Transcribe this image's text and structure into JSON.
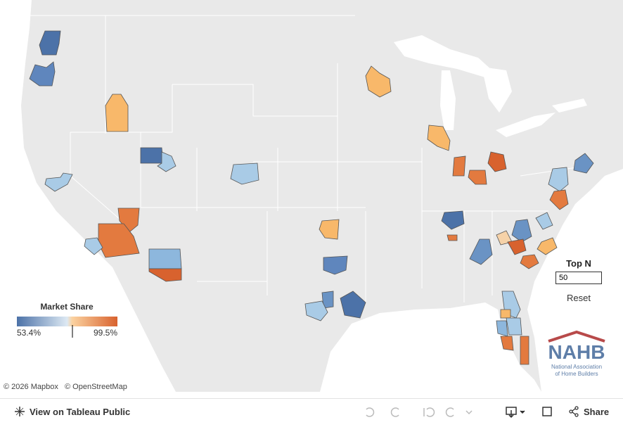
{
  "legend": {
    "title": "Market Share",
    "min_label": "53.4%",
    "max_label": "99.5%"
  },
  "controls": {
    "title": "Top N",
    "value": "50",
    "reset": "Reset"
  },
  "attribution": [
    "© 2026 Mapbox",
    "© OpenStreetMap"
  ],
  "logo": {
    "name": "NAHB",
    "line1": "National Association",
    "line2": "of Home Builders"
  },
  "toolbar": {
    "view": "View on Tableau Public",
    "share": "Share"
  }
}
